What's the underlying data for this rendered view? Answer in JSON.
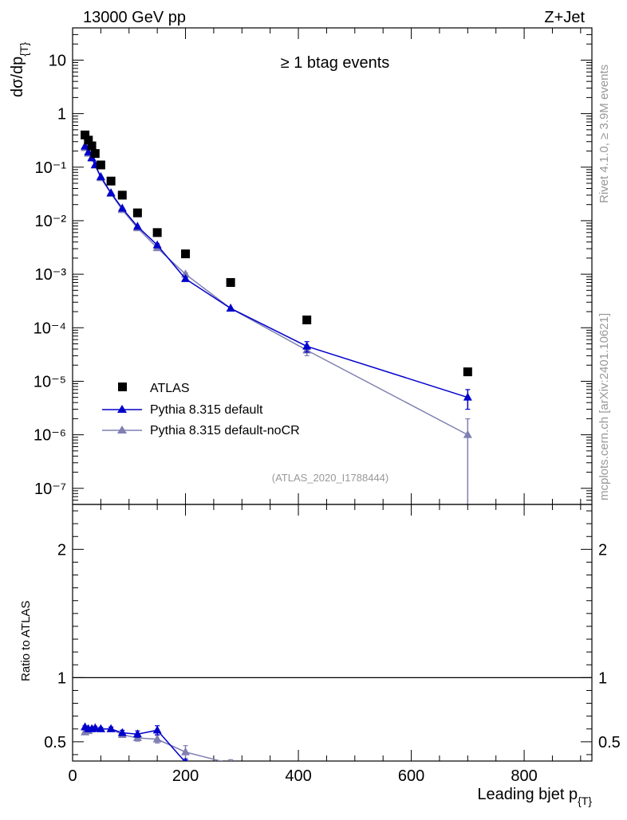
{
  "header": {
    "left": "13000 GeV pp",
    "right": "Z+Jet"
  },
  "side_labels": {
    "rivet": "Rivet 4.1.0, ≥ 3.9M events",
    "mcplots": "mcplots.cern.ch [arXiv:2401.10621]"
  },
  "colors": {
    "atlas": "#000000",
    "default": "#0000cc",
    "noCR": "#7f7fb2"
  },
  "chart_data": [
    {
      "type": "scatter",
      "panel": "main",
      "title": "≥ 1 btag events",
      "watermark": "(ATLAS_2020_I1788444)",
      "ylabel": "dσ/dp",
      "ylabel_sub": "{T}",
      "yscale": "log",
      "xlim": [
        0,
        920
      ],
      "ylim": [
        5e-08,
        40
      ],
      "ytick_labels": [
        "10",
        "1",
        "10⁻¹",
        "10⁻²",
        "10⁻³",
        "10⁻⁴",
        "10⁻⁵",
        "10⁻⁶",
        "10⁻⁷"
      ],
      "ytick_values": [
        10,
        1,
        0.1,
        0.01,
        0.001,
        0.0001,
        1e-05,
        1e-06,
        1e-07
      ],
      "legend_position": "middle-left",
      "series": [
        {
          "name": "ATLAS",
          "style": "markers-square",
          "x": [
            22,
            28,
            34,
            40,
            50,
            68,
            88,
            115,
            150,
            200,
            280,
            415,
            700
          ],
          "y": [
            0.4,
            0.32,
            0.25,
            0.18,
            0.11,
            0.055,
            0.03,
            0.014,
            0.006,
            0.0024,
            0.0007,
            0.00014,
            1.5e-05
          ]
        },
        {
          "name": "Pythia 8.315 default",
          "style": "line-triangle",
          "x": [
            22,
            28,
            34,
            40,
            50,
            68,
            88,
            115,
            150,
            200,
            280,
            415,
            700
          ],
          "y": [
            0.245,
            0.19,
            0.15,
            0.11,
            0.066,
            0.033,
            0.017,
            0.0078,
            0.0035,
            0.00082,
            0.00023,
            4.5e-05,
            5e-06
          ],
          "yerr": [
            0.01,
            0.008,
            0.006,
            0.005,
            0.003,
            0.0015,
            0.0008,
            0.0004,
            0.0002,
            5e-05,
            1e-05,
            1e-05,
            2e-06
          ]
        },
        {
          "name": "Pythia 8.315 default-noCR",
          "style": "line-triangle",
          "x": [
            22,
            28,
            34,
            40,
            50,
            68,
            88,
            115,
            150,
            200,
            280,
            415,
            700
          ],
          "y": [
            0.23,
            0.18,
            0.145,
            0.108,
            0.063,
            0.032,
            0.016,
            0.0073,
            0.0031,
            0.001,
            0.00023,
            3.8e-05,
            1e-06
          ],
          "yerr": [
            0.01,
            0.008,
            0.006,
            0.005,
            0.003,
            0.0015,
            0.0008,
            0.0004,
            0.0002,
            6e-05,
            1e-05,
            8e-06,
            9.9e-07
          ]
        }
      ]
    },
    {
      "type": "scatter",
      "panel": "ratio",
      "ylabel": "Ratio to ATLAS",
      "xlabel": "Leading bjet p",
      "xlabel_sub": "{T}",
      "xlim": [
        0,
        920
      ],
      "ylim": [
        0.35,
        2.35
      ],
      "xtick_values": [
        0,
        200,
        400,
        600,
        800
      ],
      "xtick_labels": [
        "0",
        "200",
        "400",
        "600",
        "800"
      ],
      "ytick_values": [
        0.5,
        1,
        2
      ],
      "ytick_labels": [
        "0.5",
        "1",
        "2"
      ],
      "reference_line": 1,
      "series": [
        {
          "name": "Pythia 8.315 default",
          "x": [
            22,
            28,
            34,
            40,
            50,
            68,
            88,
            115,
            150,
            200
          ],
          "y": [
            0.615,
            0.6,
            0.6,
            0.605,
            0.6,
            0.6,
            0.57,
            0.56,
            0.59,
            0.34
          ],
          "yerr": [
            0.01,
            0.01,
            0.012,
            0.012,
            0.012,
            0.015,
            0.02,
            0.025,
            0.035,
            0.02
          ]
        },
        {
          "name": "Pythia 8.315 default-noCR",
          "x": [
            22,
            28,
            34,
            40,
            50,
            68,
            88,
            115,
            150,
            200,
            280
          ],
          "y": [
            0.575,
            0.585,
            0.6,
            0.61,
            0.6,
            0.6,
            0.555,
            0.53,
            0.52,
            0.42,
            0.33
          ],
          "yerr": [
            0.01,
            0.01,
            0.012,
            0.012,
            0.012,
            0.015,
            0.02,
            0.025,
            0.03,
            0.05,
            0.03
          ]
        }
      ]
    }
  ]
}
